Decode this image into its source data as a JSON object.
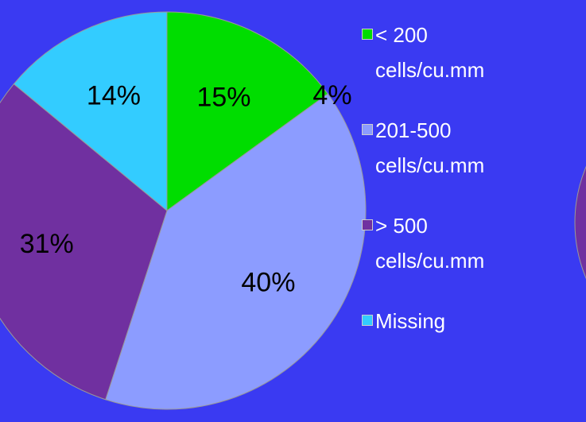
{
  "chart_data": [
    {
      "type": "pie",
      "categories": [
        "< 200 cells/cu.mm",
        "201-500 cells/cu.mm",
        "> 500 cells/cu.mm",
        "Missing"
      ],
      "values": [
        15,
        40,
        31,
        14
      ],
      "colors": [
        "#00dd00",
        "#8c9cff",
        "#7030a0",
        "#33ccff"
      ],
      "legend": "right"
    },
    {
      "type": "pie",
      "values": [
        4
      ],
      "colors": [
        "#7030a0"
      ]
    }
  ]
}
